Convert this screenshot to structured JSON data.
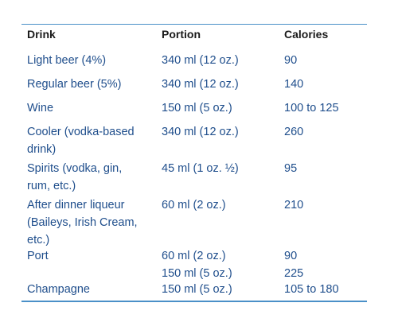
{
  "colors": {
    "rule": "#4a90c8",
    "text": "#1f4e8c"
  },
  "headers": {
    "drink": "Drink",
    "portion": "Portion",
    "calories": "Calories"
  },
  "rows": [
    {
      "drink": [
        "Light beer (4%)"
      ],
      "portion": [
        "340 ml (12 oz.)"
      ],
      "calories": [
        "90"
      ]
    },
    {
      "drink": [
        "Regular beer (5%)"
      ],
      "portion": [
        "340 ml (12 oz.)"
      ],
      "calories": [
        "140"
      ]
    },
    {
      "drink": [
        "Wine"
      ],
      "portion": [
        "150 ml  (5 oz.)"
      ],
      "calories": [
        "100 to 125"
      ]
    },
    {
      "drink": [
        "Cooler (vodka-based",
        "drink)"
      ],
      "portion": [
        "340 ml (12 oz.)"
      ],
      "calories": [
        "260"
      ]
    },
    {
      "drink": [
        "Spirits (vodka, gin,",
        "rum, etc.)"
      ],
      "portion": [
        "45 ml (1 oz. ½)"
      ],
      "calories": [
        "95"
      ]
    },
    {
      "drink": [
        "After dinner liqueur",
        "(Baileys, Irish Cream,",
        "etc.)"
      ],
      "portion": [
        "60 ml (2 oz.)"
      ],
      "calories": [
        "210"
      ]
    },
    {
      "drink": [
        "Port"
      ],
      "portion": [
        " 60 ml (2 oz.)",
        "150 ml (5 oz.)"
      ],
      "calories": [
        "90",
        "225"
      ]
    },
    {
      "drink": [
        "Champagne"
      ],
      "portion": [
        "150 ml (5 oz.)"
      ],
      "calories": [
        "105 to 180"
      ]
    }
  ]
}
